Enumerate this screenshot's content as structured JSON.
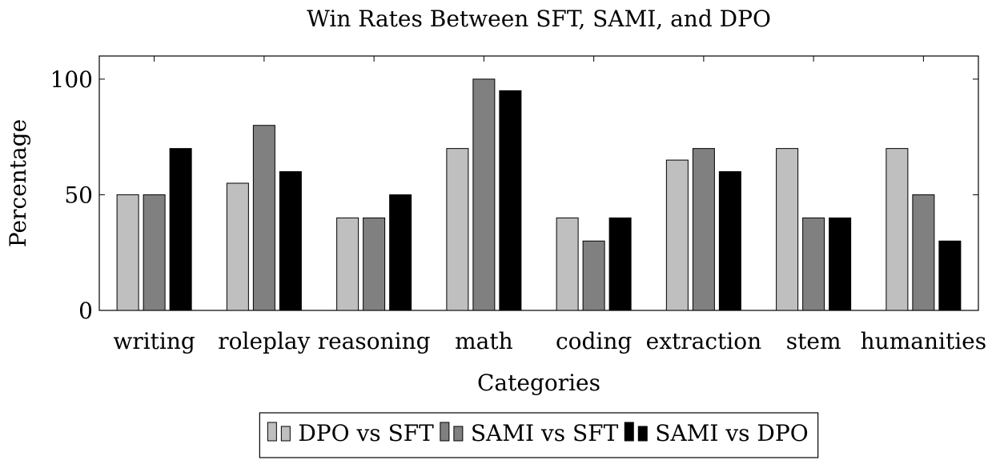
{
  "chart_data": {
    "type": "bar",
    "title": "Win Rates Between SFT, SAMI, and DPO",
    "xlabel": "Categories",
    "ylabel": "Percentage",
    "ylim": [
      0,
      110
    ],
    "yticks": [
      0,
      50,
      100
    ],
    "categories": [
      "writing",
      "roleplay",
      "reasoning",
      "math",
      "coding",
      "extraction",
      "stem",
      "humanities"
    ],
    "series": [
      {
        "name": "DPO vs SFT",
        "color": "#bfbfbf",
        "values": [
          50,
          55,
          40,
          70,
          40,
          65,
          70,
          70
        ]
      },
      {
        "name": "SAMI vs SFT",
        "color": "#808080",
        "values": [
          50,
          80,
          40,
          100,
          30,
          70,
          40,
          50
        ]
      },
      {
        "name": "SAMI vs DPO",
        "color": "#000000",
        "values": [
          70,
          60,
          50,
          95,
          40,
          60,
          40,
          30
        ]
      }
    ],
    "legend_position": "bottom",
    "grid": false
  }
}
